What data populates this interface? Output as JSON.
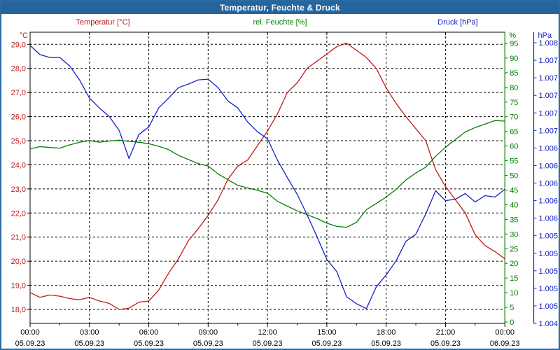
{
  "window": {
    "title": "Temperatur, Feuchte & Druck"
  },
  "legend": {
    "temperature": "Temperatur [°C]",
    "humidity": "rel. Feuchte [%]",
    "pressure": "Druck [hPa]"
  },
  "colors": {
    "titlebar_bg": "#26659b",
    "titlebar_text": "#ffffff",
    "frame_border": "#2a6ba6",
    "temperature": "#c01a1a",
    "humidity": "#008000",
    "pressure": "#1522c8",
    "grid": "#000000",
    "axis": "#000000",
    "x_labels": "#000000"
  },
  "axes": {
    "temperature": {
      "unit": "°C",
      "tick_labels": [
        "29,0",
        "28,0",
        "27,0",
        "26,0",
        "25,0",
        "24,0",
        "23,0",
        "22,0",
        "21,0",
        "20,0",
        "19,0",
        "18,0"
      ]
    },
    "humidity": {
      "unit": "%",
      "tick_labels": [
        "95",
        "90",
        "85",
        "80",
        "75",
        "70",
        "65",
        "60",
        "55",
        "50",
        "45",
        "40",
        "35",
        "30",
        "25",
        "20",
        "15",
        "10",
        "5",
        "0"
      ]
    },
    "pressure": {
      "unit": "hPa",
      "tick_labels": [
        "1.008",
        "1.007",
        "1.007",
        "1.007",
        "1.007",
        "1.007",
        "1.006",
        "1.006",
        "1.006",
        "1.006",
        "1.006",
        "1.005",
        "1.005",
        "1.005",
        "1.005",
        "1.005",
        "1.004"
      ]
    },
    "x": {
      "times": [
        "00:00",
        "03:00",
        "06:00",
        "09:00",
        "12:00",
        "15:00",
        "18:00",
        "21:00",
        "00:00"
      ],
      "dates": [
        "05.09.23",
        "05.09.23",
        "05.09.23",
        "05.09.23",
        "05.09.23",
        "05.09.23",
        "05.09.23",
        "05.09.23",
        "06.09.23"
      ]
    }
  },
  "chart_data": {
    "type": "line",
    "title": "Temperatur, Feuchte & Druck",
    "x_unit": "hours",
    "x_range": [
      0,
      24
    ],
    "x_tick_interval_hours": 3,
    "x_minor_tick_interval_hours": 1.5,
    "grid": "dashed, horizontal every 1 °C, vertical every 3 h",
    "x_hours": [
      0,
      0.5,
      1,
      1.5,
      2,
      2.5,
      3,
      3.5,
      4,
      4.5,
      5,
      5.5,
      6,
      6.5,
      7,
      7.5,
      8,
      8.5,
      9,
      9.5,
      10,
      10.5,
      11,
      11.5,
      12,
      12.5,
      13,
      13.5,
      14,
      14.5,
      15,
      15.5,
      16,
      16.5,
      17,
      17.5,
      18,
      18.5,
      19,
      19.5,
      20,
      20.5,
      21,
      21.5,
      22,
      22.5,
      23,
      23.5,
      24
    ],
    "series": [
      {
        "name": "Temperatur",
        "unit": "°C",
        "color": "#c01a1a",
        "axis_ticks": [
          29,
          28,
          27,
          26,
          25,
          24,
          23,
          22,
          21,
          20,
          19,
          18
        ],
        "values": [
          18.7,
          18.5,
          18.6,
          18.55,
          18.45,
          18.4,
          18.5,
          18.35,
          18.25,
          18.0,
          18.05,
          18.3,
          18.35,
          18.8,
          19.5,
          20.1,
          20.85,
          21.35,
          21.9,
          22.55,
          23.4,
          23.95,
          24.2,
          24.8,
          25.4,
          26.1,
          27.0,
          27.4,
          28.0,
          28.3,
          28.6,
          28.9,
          29.05,
          28.75,
          28.45,
          28.0,
          27.2,
          26.55,
          26.0,
          25.5,
          25.0,
          23.8,
          23.1,
          22.55,
          22.0,
          21.1,
          20.65,
          20.4,
          20.1
        ]
      },
      {
        "name": "rel. Feuchte",
        "unit": "%",
        "color": "#008000",
        "axis_ticks": [
          95,
          90,
          85,
          80,
          75,
          70,
          65,
          60,
          55,
          50,
          45,
          40,
          35,
          30,
          25,
          20,
          15,
          10,
          5,
          0
        ],
        "values": [
          59.0,
          59.8,
          59.5,
          59.3,
          60.4,
          61.3,
          61.9,
          61.3,
          61.7,
          62.0,
          61.6,
          61.3,
          60.8,
          59.9,
          58.8,
          56.8,
          55.4,
          54.0,
          53.2,
          50.5,
          48.5,
          46.6,
          45.7,
          44.9,
          43.9,
          41.2,
          39.5,
          37.9,
          36.6,
          35.3,
          33.7,
          32.6,
          32.3,
          34.0,
          38.3,
          40.4,
          42.6,
          45.2,
          48.4,
          50.8,
          52.8,
          56.5,
          59.6,
          62.2,
          64.8,
          66.3,
          67.5,
          68.7,
          68.5
        ]
      },
      {
        "name": "Druck",
        "unit": "hPa",
        "color": "#1522c8",
        "axis_top": 1.008,
        "axis_bottom": 1.004,
        "values": [
          1.00796,
          1.00783,
          1.00779,
          1.00779,
          1.00767,
          1.00747,
          1.00721,
          1.00707,
          1.00695,
          1.00675,
          1.00635,
          1.00669,
          1.0068,
          1.00707,
          1.00721,
          1.00736,
          1.00741,
          1.00747,
          1.00748,
          1.00736,
          1.00717,
          1.00707,
          1.00687,
          1.00673,
          1.00663,
          1.00633,
          1.00608,
          1.00584,
          1.00555,
          1.00524,
          1.00491,
          1.00474,
          1.00438,
          1.00428,
          1.00421,
          1.00452,
          1.00469,
          1.00489,
          1.00517,
          1.00527,
          1.00556,
          1.00589,
          1.00575,
          1.00577,
          1.00585,
          1.00573,
          1.00582,
          1.0058,
          1.00591
        ]
      }
    ]
  }
}
